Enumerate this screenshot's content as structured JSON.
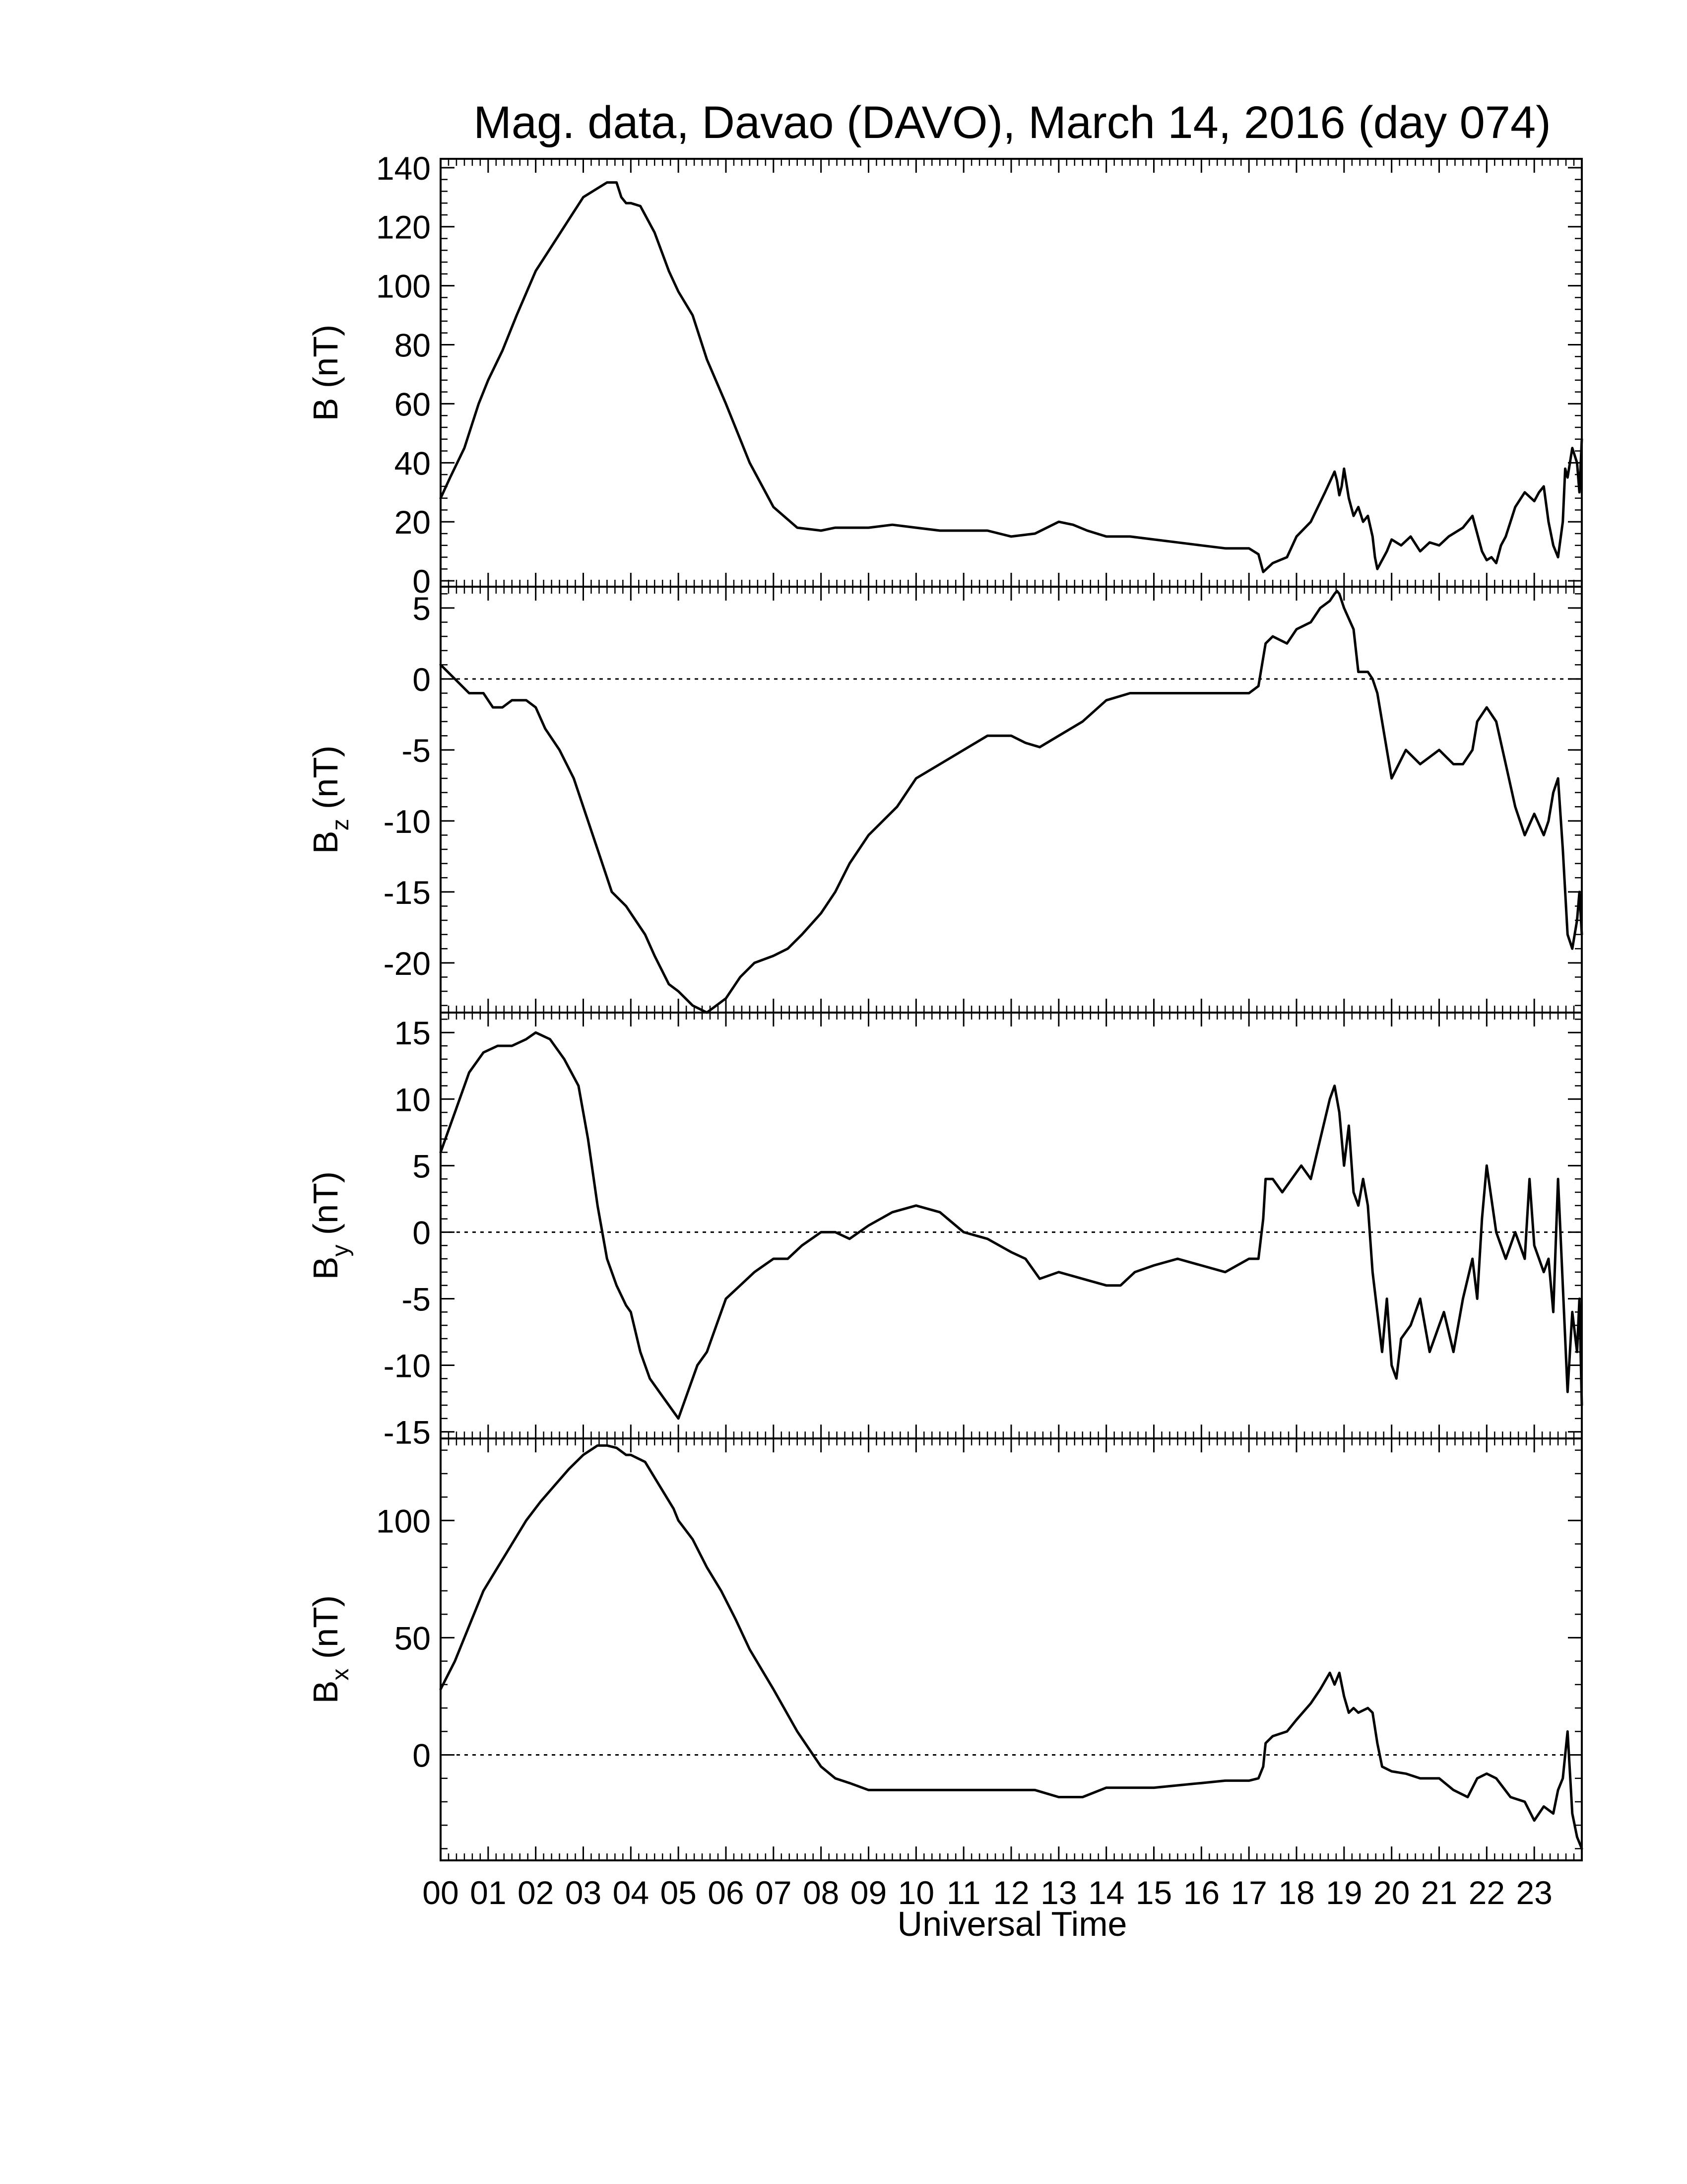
{
  "chart_data": {
    "type": "line",
    "title": "Mag. data, Davao (DAVO), March 14, 2016 (day 074)",
    "xlabel": "Universal Time",
    "xlim": [
      0,
      24
    ],
    "x_units": "hours UT",
    "x_tick_labels": [
      "00",
      "01",
      "02",
      "03",
      "04",
      "05",
      "06",
      "07",
      "08",
      "09",
      "10",
      "11",
      "12",
      "13",
      "14",
      "15",
      "16",
      "17",
      "18",
      "19",
      "20",
      "21",
      "22",
      "23"
    ],
    "x_tick_values": [
      0,
      1,
      2,
      3,
      4,
      5,
      6,
      7,
      8,
      9,
      10,
      11,
      12,
      13,
      14,
      15,
      16,
      17,
      18,
      19,
      20,
      21,
      22,
      23
    ],
    "grid": false,
    "panels": [
      {
        "id": "B",
        "ylabel_main": "B",
        "ylabel_sub": "",
        "ylabel_unit": " (nT)",
        "ylim": [
          -2,
          143
        ],
        "yticks": [
          0,
          20,
          40,
          60,
          80,
          100,
          120,
          140
        ],
        "ytick_labels": [
          "0",
          "20",
          "40",
          "60",
          "80",
          "100",
          "120",
          "140"
        ],
        "zero_line": false,
        "series": [
          {
            "x": [
              0,
              0.2,
              0.5,
              0.8,
              1,
              1.3,
              1.6,
              2,
              2.4,
              2.8,
              3,
              3.3,
              3.5,
              3.7,
              3.8,
              3.9,
              4,
              4.2,
              4.5,
              4.8,
              5,
              5.3,
              5.6,
              6,
              6.5,
              7,
              7.5,
              8,
              8.3,
              8.6,
              9,
              9.5,
              10,
              10.5,
              11,
              11.5,
              12,
              12.5,
              13,
              13.3,
              13.6,
              14,
              14.5,
              15,
              15.5,
              16,
              16.5,
              17,
              17.2,
              17.3,
              17.5,
              17.8,
              18,
              18.3,
              18.6,
              18.8,
              18.85,
              18.9,
              18.95,
              19,
              19.1,
              19.2,
              19.3,
              19.4,
              19.5,
              19.6,
              19.65,
              19.7,
              19.9,
              20,
              20.2,
              20.4,
              20.6,
              20.8,
              21,
              21.2,
              21.5,
              21.7,
              21.9,
              22,
              22.1,
              22.2,
              22.3,
              22.4,
              22.5,
              22.6,
              22.8,
              23,
              23.1,
              23.2,
              23.3,
              23.4,
              23.5,
              23.6,
              23.65,
              23.7,
              23.8,
              23.9,
              23.95,
              24
            ],
            "y": [
              28,
              35,
              45,
              60,
              68,
              78,
              90,
              105,
              115,
              125,
              130,
              133,
              135,
              135,
              130,
              128,
              128,
              127,
              118,
              105,
              98,
              90,
              75,
              60,
              40,
              25,
              18,
              17,
              18,
              18,
              18,
              19,
              18,
              17,
              17,
              17,
              15,
              16,
              20,
              19,
              17,
              15,
              15,
              14,
              13,
              12,
              11,
              11,
              9,
              3,
              6,
              8,
              15,
              20,
              30,
              37,
              34,
              29,
              32,
              38,
              28,
              22,
              25,
              20,
              22,
              15,
              8,
              4,
              10,
              14,
              12,
              15,
              10,
              13,
              12,
              15,
              18,
              22,
              10,
              7,
              8,
              6,
              12,
              15,
              20,
              25,
              30,
              27,
              30,
              32,
              20,
              12,
              8,
              20,
              38,
              35,
              45,
              40,
              30,
              48
            ]
          }
        ]
      },
      {
        "id": "Bz",
        "ylabel_main": "B",
        "ylabel_sub": "z",
        "ylabel_unit": " (nT)",
        "ylim": [
          -23.5,
          6.5
        ],
        "yticks": [
          -20,
          -15,
          -10,
          -5,
          0,
          5
        ],
        "ytick_labels": [
          "-20",
          "-15",
          "-10",
          "-5",
          "0",
          "5"
        ],
        "zero_line": true,
        "series": [
          {
            "x": [
              0,
              0.3,
              0.6,
              0.9,
              1.1,
              1.3,
              1.5,
              1.8,
              2,
              2.2,
              2.5,
              2.8,
              3,
              3.3,
              3.6,
              3.9,
              4,
              4.3,
              4.5,
              4.8,
              5,
              5.3,
              5.6,
              5.8,
              6,
              6.3,
              6.6,
              7,
              7.3,
              7.6,
              8,
              8.3,
              8.6,
              9,
              9.3,
              9.6,
              10,
              10.5,
              11,
              11.5,
              12,
              12.3,
              12.6,
              13,
              13.5,
              14,
              14.5,
              15,
              15.5,
              16,
              16.5,
              17,
              17.2,
              17.3,
              17.35,
              17.5,
              17.8,
              18,
              18.3,
              18.5,
              18.7,
              18.8,
              18.85,
              18.9,
              19,
              19.2,
              19.3,
              19.5,
              19.6,
              19.7,
              19.8,
              19.9,
              20,
              20.3,
              20.6,
              21,
              21.3,
              21.5,
              21.7,
              21.8,
              22,
              22.2,
              22.4,
              22.6,
              22.8,
              23,
              23.2,
              23.3,
              23.4,
              23.5,
              23.6,
              23.7,
              23.8,
              23.9,
              23.95,
              24
            ],
            "y": [
              1,
              0,
              -1,
              -1,
              -2,
              -2,
              -1.5,
              -1.5,
              -2,
              -3.5,
              -5,
              -7,
              -9,
              -12,
              -15,
              -16,
              -16.5,
              -18,
              -19.5,
              -21.5,
              -22,
              -23,
              -23.5,
              -23,
              -22.5,
              -21,
              -20,
              -19.5,
              -19,
              -18,
              -16.5,
              -15,
              -13,
              -11,
              -10,
              -9,
              -7,
              -6,
              -5,
              -4,
              -4,
              -4.5,
              -4.8,
              -4,
              -3,
              -1.5,
              -1,
              -1,
              -1,
              -1,
              -1,
              -1,
              -0.5,
              1.5,
              2.5,
              3,
              2.5,
              3.5,
              4,
              5,
              5.5,
              6,
              6.2,
              6,
              5,
              3.5,
              0.5,
              0.5,
              0,
              -1,
              -3,
              -5,
              -7,
              -5,
              -6,
              -5,
              -6,
              -6,
              -5,
              -3,
              -2,
              -3,
              -6,
              -9,
              -11,
              -9.5,
              -11,
              -10,
              -8,
              -7,
              -12,
              -18,
              -19,
              -17,
              -15,
              -18
            ]
          }
        ]
      },
      {
        "id": "By",
        "ylabel_main": "B",
        "ylabel_sub": "y",
        "ylabel_unit": " (nT)",
        "ylim": [
          -15.5,
          16.5
        ],
        "yticks": [
          -15,
          -10,
          -5,
          0,
          5,
          10,
          15
        ],
        "ytick_labels": [
          "-15",
          "-10",
          "-5",
          "0",
          "5",
          "10",
          "15"
        ],
        "zero_line": true,
        "series": [
          {
            "x": [
              0,
              0.3,
              0.6,
              0.9,
              1.2,
              1.5,
              1.8,
              2,
              2.3,
              2.6,
              2.9,
              3.1,
              3.3,
              3.5,
              3.7,
              3.9,
              4,
              4.2,
              4.4,
              4.6,
              4.8,
              5,
              5.2,
              5.4,
              5.6,
              5.8,
              6,
              6.3,
              6.6,
              7,
              7.3,
              7.6,
              8,
              8.3,
              8.6,
              9,
              9.5,
              10,
              10.5,
              11,
              11.5,
              12,
              12.3,
              12.6,
              13,
              13.5,
              14,
              14.3,
              14.6,
              15,
              15.5,
              16,
              16.5,
              17,
              17.2,
              17.3,
              17.35,
              17.5,
              17.7,
              17.9,
              18.1,
              18.3,
              18.5,
              18.7,
              18.8,
              18.9,
              19,
              19.1,
              19.2,
              19.3,
              19.4,
              19.5,
              19.6,
              19.7,
              19.8,
              19.9,
              20,
              20.1,
              20.2,
              20.4,
              20.6,
              20.8,
              21,
              21.1,
              21.3,
              21.5,
              21.7,
              21.8,
              21.9,
              22,
              22.2,
              22.4,
              22.6,
              22.8,
              22.9,
              23,
              23.1,
              23.2,
              23.3,
              23.4,
              23.5,
              23.6,
              23.7,
              23.8,
              23.9,
              23.95,
              24
            ],
            "y": [
              6,
              9,
              12,
              13.5,
              14,
              14,
              14.5,
              15,
              14.5,
              13,
              11,
              7,
              2,
              -2,
              -4,
              -5.5,
              -6,
              -9,
              -11,
              -12,
              -13,
              -14,
              -12,
              -10,
              -9,
              -7,
              -5,
              -4,
              -3,
              -2,
              -2,
              -1,
              0,
              0,
              -0.5,
              0.5,
              1.5,
              2,
              1.5,
              0,
              -0.5,
              -1.5,
              -2,
              -3.5,
              -3,
              -3.5,
              -4,
              -4,
              -3,
              -2.5,
              -2,
              -2.5,
              -3,
              -2,
              -2,
              1,
              4,
              4,
              3,
              4,
              5,
              4,
              7,
              10,
              11,
              9,
              5,
              8,
              3,
              2,
              4,
              2,
              -3,
              -6,
              -9,
              -5,
              -10,
              -11,
              -8,
              -7,
              -5,
              -9,
              -7,
              -6,
              -9,
              -5,
              -2,
              -5,
              1,
              5,
              0,
              -2,
              0,
              -2,
              4,
              -1,
              -2,
              -3,
              -2,
              -6,
              4,
              -4,
              -12,
              -6,
              -9,
              -5,
              -13
            ]
          }
        ]
      },
      {
        "id": "Bx",
        "ylabel_main": "B",
        "ylabel_sub": "x",
        "ylabel_unit": " (nT)",
        "ylim": [
          -45,
          135
        ],
        "yticks": [
          0,
          50,
          100
        ],
        "ytick_labels": [
          "0",
          "50",
          "100"
        ],
        "zero_line": true,
        "series": [
          {
            "x": [
              0,
              0.3,
              0.6,
              0.9,
              1.2,
              1.5,
              1.8,
              2.1,
              2.4,
              2.7,
              3,
              3.3,
              3.5,
              3.7,
              3.9,
              4,
              4.3,
              4.6,
              4.9,
              5,
              5.3,
              5.6,
              5.9,
              6.2,
              6.5,
              7,
              7.5,
              8,
              8.3,
              8.6,
              9,
              9.5,
              10,
              10.5,
              11,
              11.5,
              12,
              12.5,
              13,
              13.5,
              14,
              14.5,
              15,
              15.5,
              16,
              16.5,
              17,
              17.2,
              17.3,
              17.35,
              17.5,
              17.8,
              18,
              18.3,
              18.5,
              18.7,
              18.8,
              18.9,
              19,
              19.1,
              19.2,
              19.3,
              19.5,
              19.6,
              19.7,
              19.8,
              20,
              20.3,
              20.6,
              21,
              21.3,
              21.6,
              21.8,
              22,
              22.2,
              22.5,
              22.8,
              23,
              23.2,
              23.4,
              23.5,
              23.6,
              23.7,
              23.8,
              23.9,
              24
            ],
            "y": [
              28,
              40,
              55,
              70,
              80,
              90,
              100,
              108,
              115,
              122,
              128,
              132,
              132,
              131,
              128,
              128,
              125,
              115,
              105,
              100,
              92,
              80,
              70,
              58,
              45,
              28,
              10,
              -5,
              -10,
              -12,
              -15,
              -15,
              -15,
              -15,
              -15,
              -15,
              -15,
              -15,
              -18,
              -18,
              -14,
              -14,
              -14,
              -13,
              -12,
              -11,
              -11,
              -10,
              -5,
              5,
              8,
              10,
              15,
              22,
              28,
              35,
              30,
              35,
              25,
              18,
              20,
              18,
              20,
              18,
              5,
              -5,
              -7,
              -8,
              -10,
              -10,
              -15,
              -18,
              -10,
              -8,
              -10,
              -18,
              -20,
              -28,
              -22,
              -25,
              -15,
              -10,
              10,
              -25,
              -35,
              -40
            ]
          }
        ]
      }
    ]
  }
}
